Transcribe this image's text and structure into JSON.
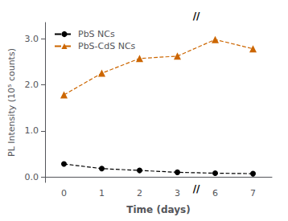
{
  "chart_data": {
    "type": "line",
    "xlabel": "Time (days)",
    "ylabel": "PL Intensity (10⁵ counts)",
    "categories": [
      "0",
      "1",
      "2",
      "3",
      "6",
      "7"
    ],
    "series": [
      {
        "name": "PbS NCs",
        "color": "#000000",
        "marker": "circle",
        "line_style": "dashed",
        "values": [
          0.28,
          0.18,
          0.14,
          0.1,
          0.08,
          0.07
        ]
      },
      {
        "name": "PbS-CdS NCs",
        "color": "#CC6600",
        "marker": "triangle",
        "line_style": "dashed",
        "values": [
          1.78,
          2.25,
          2.57,
          2.62,
          2.98,
          2.78
        ]
      }
    ],
    "ylim": [
      -0.12,
      3.35
    ],
    "yticks": [
      {
        "value": 0.0,
        "label": "0.0"
      },
      {
        "value": 1.0,
        "label": "1.0"
      },
      {
        "value": 2.0,
        "label": "2.0"
      },
      {
        "value": 3.0,
        "label": "3.0"
      }
    ],
    "grid": false,
    "legend": "upper left",
    "annotations": [
      {
        "text": "//",
        "x": "3",
        "side": "bottom"
      },
      {
        "text": "//",
        "x": "3",
        "side": "top"
      }
    ]
  }
}
